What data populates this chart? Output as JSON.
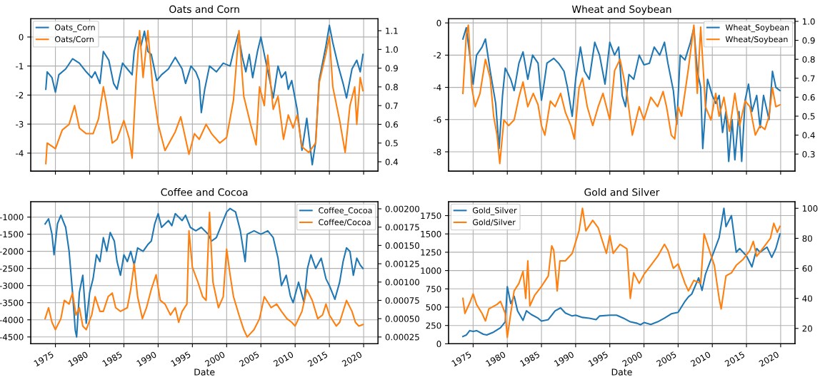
{
  "chart_data": [
    {
      "type": "line",
      "title": "Oats and Corn",
      "xlim": [
        1971.4,
        2022.1
      ],
      "xticks": [
        1975,
        1980,
        1985,
        1990,
        1995,
        2000,
        2005,
        2010,
        2015,
        2020
      ],
      "ylim": [
        -4.62,
        0.63
      ],
      "yticks": [
        -4,
        -3,
        -2,
        -1,
        0
      ],
      "y2lim": [
        0.35,
        1.164
      ],
      "y2ticks": [
        0.4,
        0.5,
        0.6,
        0.7,
        0.8,
        0.9,
        {
          "value": 1.0,
          "label": "1.0"
        },
        1.1
      ],
      "grid": true,
      "legend": "top left",
      "tick_labels": "y",
      "series": [
        {
          "name": "Oats_Corn",
          "color": "#1f77b4",
          "x": [
            1973.6,
            1973.8,
            1974.5,
            1975.0,
            1975.5,
            1976.5,
            1977.5,
            1978.5,
            1979.5,
            1980.3,
            1980.8,
            1981.5,
            1982.0,
            1982.8,
            1983.5,
            1984.0,
            1984.8,
            1985.5,
            1986.2,
            1986.5,
            1987.0,
            1987.5,
            1988.0,
            1988.5,
            1989.0,
            1989.8,
            1990.5,
            1991.5,
            1992.5,
            1993.5,
            1994.0,
            1994.8,
            1995.5,
            1996.0,
            1996.3,
            1996.8,
            1997.5,
            1998.5,
            1999.5,
            2000.5,
            2001.0,
            2001.7,
            2002.3,
            2002.8,
            2003.3,
            2003.8,
            2004.5,
            2005.0,
            2005.5,
            2006.3,
            2006.8,
            2007.5,
            2008.0,
            2008.6,
            2009.0,
            2009.5,
            2010.3,
            2011.0,
            2011.7,
            2012.5,
            2013.0,
            2013.5,
            2014.5,
            2015.0,
            2015.5,
            2016.3,
            2017.0,
            2017.5,
            2018.3,
            2019.0,
            2019.5,
            2019.9
          ],
          "values": [
            -1.8,
            -1.2,
            -1.4,
            -1.9,
            -1.3,
            -1.1,
            -0.75,
            -0.9,
            -1.2,
            -1.4,
            -1.2,
            -1.6,
            -0.5,
            -0.8,
            -1.6,
            -1.8,
            -0.9,
            -1.1,
            -1.3,
            -0.5,
            0.0,
            -0.3,
            0.2,
            -0.5,
            -0.6,
            -1.5,
            -1.3,
            -1.1,
            -0.7,
            -1.1,
            -1.6,
            -1.0,
            -1.2,
            -1.5,
            -2.6,
            -1.8,
            -1.0,
            -1.2,
            -0.9,
            -1.0,
            -0.5,
            0.1,
            -0.7,
            -1.2,
            -0.6,
            -1.4,
            -0.5,
            0.0,
            -0.6,
            -1.5,
            -2.1,
            -1.0,
            -1.4,
            -1.2,
            -1.8,
            -1.5,
            -2.5,
            -3.9,
            -2.8,
            -4.4,
            -3.6,
            -1.5,
            -0.3,
            0.4,
            -0.2,
            -1.0,
            -1.6,
            -2.1,
            -1.1,
            -0.8,
            -1.2,
            -0.6
          ]
        },
        {
          "name": "Oats/Corn",
          "color": "#ff7f0e",
          "axis": "y2",
          "x": [
            1973.6,
            1973.8,
            1975.0,
            1976.0,
            1977.0,
            1977.8,
            1978.5,
            1979.5,
            1980.5,
            1981.3,
            1982.0,
            1982.5,
            1983.3,
            1984.0,
            1985.0,
            1985.8,
            1986.2,
            1986.8,
            1987.3,
            1987.8,
            1988.5,
            1989.2,
            1990.0,
            1991.0,
            1992.5,
            1993.3,
            1994.5,
            1995.3,
            1996.0,
            1997.0,
            1997.8,
            1999.0,
            2000.0,
            2001.0,
            2001.8,
            2002.5,
            2003.5,
            2004.3,
            2004.8,
            2005.5,
            2006.0,
            2006.8,
            2007.5,
            2008.3,
            2009.0,
            2009.7,
            2010.3,
            2011.0,
            2012.0,
            2013.0,
            2013.5,
            2014.5,
            2015.0,
            2015.5,
            2016.5,
            2017.3,
            2018.0,
            2018.7,
            2019.0,
            2019.5,
            2019.9
          ],
          "values": [
            0.39,
            0.5,
            0.47,
            0.57,
            0.6,
            0.7,
            0.58,
            0.55,
            0.55,
            0.63,
            0.8,
            0.7,
            0.5,
            0.52,
            0.62,
            0.52,
            0.42,
            0.85,
            1.1,
            0.85,
            1.1,
            0.8,
            0.6,
            0.46,
            0.56,
            0.64,
            0.44,
            0.55,
            0.52,
            0.6,
            0.55,
            0.5,
            0.53,
            0.73,
            1.1,
            0.75,
            0.6,
            0.49,
            0.8,
            0.7,
            0.97,
            0.68,
            0.75,
            0.52,
            0.65,
            0.58,
            0.65,
            0.48,
            0.45,
            0.5,
            0.82,
            0.98,
            1.07,
            0.8,
            0.62,
            0.45,
            0.7,
            0.8,
            0.6,
            0.85,
            0.78
          ]
        }
      ]
    },
    {
      "type": "line",
      "title": "Wheat and Soybean",
      "xlim": [
        1971.4,
        2022.1
      ],
      "xticks": [
        1975,
        1980,
        1985,
        1990,
        1995,
        2000,
        2005,
        2010,
        2015,
        2020
      ],
      "ylim": [
        -9.2,
        0.26
      ],
      "yticks": [
        -8,
        -6,
        -4,
        -2,
        0
      ],
      "y2lim": [
        0.21,
        1.014
      ],
      "y2ticks": [
        0.3,
        0.4,
        0.5,
        0.6,
        0.7,
        0.8,
        0.9,
        {
          "value": 1.0,
          "label": "1.0"
        }
      ],
      "grid": true,
      "legend": "top right",
      "tick_labels": "y",
      "series": [
        {
          "name": "Wheat_Soybean",
          "color": "#1f77b4",
          "x": [
            1973.5,
            1974.0,
            1974.5,
            1975.0,
            1975.5,
            1976.3,
            1976.8,
            1977.5,
            1978.3,
            1978.8,
            1979.3,
            1979.7,
            1980.5,
            1981.0,
            1981.7,
            1982.3,
            1983.0,
            1983.7,
            1984.5,
            1985.0,
            1985.3,
            1985.8,
            1986.8,
            1987.5,
            1988.3,
            1988.8,
            1989.5,
            1990.0,
            1990.7,
            1991.3,
            1992.0,
            1992.8,
            1993.5,
            1994.3,
            1995.0,
            1995.7,
            1996.3,
            1996.8,
            1997.3,
            1997.8,
            1998.5,
            1999.3,
            2000.0,
            2000.8,
            2001.5,
            2002.3,
            2003.0,
            2003.5,
            2004.3,
            2004.8,
            2005.3,
            2006.0,
            2006.8,
            2007.3,
            2007.8,
            2008.3,
            2008.6,
            2009.3,
            2010.0,
            2010.5,
            2011.0,
            2011.5,
            2012.0,
            2012.4,
            2012.9,
            2013.3,
            2013.9,
            2014.3,
            2014.8,
            2015.3,
            2015.8,
            2016.5,
            2017.0,
            2017.5,
            2018.3,
            2018.8,
            2019.3,
            2019.9
          ],
          "values": [
            -1.0,
            -0.3,
            -2.0,
            -3.8,
            -2.0,
            -1.5,
            -1.0,
            -3.0,
            -5.0,
            -7.8,
            -4.5,
            -2.8,
            -3.5,
            -4.2,
            -2.5,
            -1.8,
            -3.5,
            -2.0,
            -2.5,
            -4.8,
            -4.0,
            -2.5,
            -2.2,
            -2.5,
            -3.0,
            -4.0,
            -5.8,
            -3.5,
            -1.5,
            -3.0,
            -3.5,
            -1.2,
            -2.0,
            -3.8,
            -1.2,
            -2.0,
            -1.5,
            -4.5,
            -5.2,
            -3.2,
            -3.5,
            -2.0,
            -2.6,
            -2.5,
            -1.5,
            -2.0,
            -1.2,
            -2.5,
            -4.2,
            -6.3,
            -2.0,
            -2.3,
            -1.2,
            -0.3,
            -3.0,
            -4.0,
            -7.8,
            -3.5,
            -4.5,
            -5.0,
            -4.5,
            -6.8,
            -5.5,
            -8.6,
            -6.0,
            -8.5,
            -5.5,
            -8.6,
            -4.8,
            -3.8,
            -5.5,
            -4.5,
            -6.5,
            -4.5,
            -6.0,
            -3.0,
            -4.0,
            -4.2
          ]
        },
        {
          "name": "Wheat/Soybean",
          "color": "#ff7f0e",
          "axis": "y2",
          "x": [
            1973.5,
            1974.0,
            1974.3,
            1974.8,
            1975.3,
            1976.0,
            1976.8,
            1977.5,
            1978.0,
            1978.5,
            1978.9,
            1979.5,
            1980.2,
            1981.0,
            1981.7,
            1982.3,
            1983.0,
            1983.8,
            1984.5,
            1985.0,
            1985.5,
            1986.3,
            1987.0,
            1987.8,
            1988.5,
            1989.3,
            1989.8,
            1990.5,
            1991.0,
            1991.7,
            1992.5,
            1993.3,
            1994.0,
            1995.0,
            1995.7,
            1996.5,
            1997.5,
            1998.3,
            1999.3,
            2000.0,
            2001.0,
            2002.0,
            2002.8,
            2003.3,
            2004.0,
            2004.5,
            2005.0,
            2005.5,
            2006.5,
            2007.3,
            2007.8,
            2008.3,
            2009.0,
            2009.8,
            2010.5,
            2011.0,
            2011.7,
            2012.5,
            2013.3,
            2014.0,
            2014.8,
            2015.5,
            2016.3,
            2017.0,
            2017.7,
            2018.3,
            2018.8,
            2019.3,
            2019.9
          ],
          "values": [
            0.62,
            0.93,
            0.98,
            0.65,
            0.55,
            0.62,
            0.8,
            0.7,
            0.5,
            0.4,
            0.25,
            0.48,
            0.45,
            0.48,
            0.6,
            0.68,
            0.55,
            0.62,
            0.56,
            0.45,
            0.4,
            0.58,
            0.55,
            0.62,
            0.52,
            0.45,
            0.38,
            0.65,
            0.7,
            0.55,
            0.45,
            0.55,
            0.62,
            0.48,
            0.74,
            0.8,
            0.62,
            0.4,
            0.55,
            0.48,
            0.6,
            0.55,
            0.63,
            0.55,
            0.4,
            0.38,
            0.55,
            0.5,
            0.75,
            0.98,
            0.62,
            0.97,
            0.55,
            0.48,
            0.62,
            0.5,
            0.6,
            0.42,
            0.62,
            0.45,
            0.58,
            0.55,
            0.4,
            0.45,
            0.43,
            0.5,
            0.65,
            0.55,
            0.56
          ]
        }
      ]
    },
    {
      "type": "line",
      "title": "Coffee and Cocoa",
      "xlabel": "Date",
      "xlim": [
        1971.4,
        2022.1
      ],
      "xticks": [
        1975,
        1980,
        1985,
        1990,
        1995,
        2000,
        2005,
        2010,
        2015,
        2020
      ],
      "ylim": [
        -4700,
        -551
      ],
      "yticks": [
        -4500,
        -4000,
        -3500,
        -3000,
        -2500,
        -2000,
        -1500,
        -1000
      ],
      "y2lim": [
        0.000157,
        0.002097
      ],
      "y2ticks": [
        {
          "value": 0.00025,
          "label": "0.00025"
        },
        {
          "value": 0.0005,
          "label": "0.00050"
        },
        {
          "value": 0.00075,
          "label": "0.00075"
        },
        {
          "value": 0.001,
          "label": "0.00100"
        },
        {
          "value": 0.00125,
          "label": "0.00125"
        },
        {
          "value": 0.0015,
          "label": "0.00150"
        },
        {
          "value": 0.00175,
          "label": "0.00175"
        },
        {
          "value": 0.002,
          "label": "0.00200"
        }
      ],
      "grid": true,
      "legend": "top right",
      "series": [
        {
          "name": "Coffee_Cocoa",
          "color": "#1f77b4",
          "x": [
            1973.5,
            1974.0,
            1974.5,
            1974.8,
            1975.3,
            1975.8,
            1976.5,
            1977.0,
            1977.5,
            1977.9,
            1978.1,
            1978.5,
            1979.0,
            1979.5,
            1980.0,
            1980.5,
            1981.0,
            1981.5,
            1982.0,
            1982.5,
            1983.0,
            1983.6,
            1984.0,
            1984.5,
            1985.0,
            1985.5,
            1986.0,
            1986.5,
            1987.0,
            1987.8,
            1988.5,
            1989.0,
            1989.5,
            1990.0,
            1990.5,
            1991.5,
            1992.0,
            1992.5,
            1993.5,
            1994.0,
            1994.7,
            1995.5,
            1996.3,
            1997.3,
            1997.8,
            1998.5,
            1999.3,
            2000.0,
            2000.5,
            2001.3,
            2002.0,
            2002.7,
            2003.0,
            2004.0,
            2005.0,
            2006.0,
            2006.8,
            2007.5,
            2008.0,
            2008.7,
            2009.3,
            2009.7,
            2010.5,
            2011.3,
            2011.8,
            2012.3,
            2013.0,
            2013.8,
            2014.5,
            2015.0,
            2015.8,
            2016.5,
            2017.0,
            2017.5,
            2018.0,
            2018.5,
            2019.0,
            2019.5,
            2019.9
          ],
          "values": [
            -1200,
            -1050,
            -1500,
            -2100,
            -1200,
            -950,
            -1300,
            -2000,
            -3200,
            -4300,
            -4500,
            -3200,
            -2700,
            -4100,
            -3200,
            -2800,
            -2100,
            -2300,
            -1600,
            -2000,
            -1450,
            -1700,
            -2300,
            -2700,
            -2100,
            -2300,
            -2000,
            -2400,
            -1900,
            -2000,
            -1800,
            -1700,
            -1200,
            -900,
            -1300,
            -1100,
            -1250,
            -900,
            -1100,
            -950,
            -1300,
            -1400,
            -1300,
            -1500,
            -1700,
            -1600,
            -1200,
            -850,
            -750,
            -850,
            -1400,
            -2300,
            -1500,
            -1400,
            -1500,
            -1400,
            -1600,
            -2200,
            -3000,
            -2700,
            -3300,
            -3500,
            -2900,
            -3500,
            -2500,
            -2100,
            -2500,
            -2200,
            -2800,
            -3000,
            -3400,
            -2900,
            -2300,
            -1900,
            -2000,
            -2700,
            -2200,
            -2400,
            -2500
          ]
        },
        {
          "name": "Coffee/Cocoa",
          "color": "#ff7f0e",
          "axis": "y2",
          "x": [
            1973.5,
            1974.0,
            1974.5,
            1975.0,
            1975.8,
            1976.3,
            1977.0,
            1977.5,
            1978.0,
            1978.5,
            1979.0,
            1979.5,
            1980.3,
            1980.8,
            1981.5,
            1982.0,
            1982.7,
            1983.3,
            1983.8,
            1984.5,
            1985.5,
            1986.0,
            1986.5,
            1987.0,
            1987.7,
            1988.3,
            1989.0,
            1989.7,
            1990.3,
            1991.0,
            1991.8,
            1992.5,
            1993.0,
            1993.5,
            1994.2,
            1994.5,
            1995.0,
            1995.8,
            1996.5,
            1997.0,
            1997.5,
            1998.0,
            1998.8,
            1999.5,
            2000.0,
            2000.5,
            2001.0,
            2001.8,
            2002.5,
            2003.0,
            2004.0,
            2004.8,
            2005.5,
            2006.5,
            2007.3,
            2008.0,
            2008.8,
            2009.5,
            2010.0,
            2011.0,
            2011.7,
            2012.5,
            2013.3,
            2014.0,
            2014.5,
            2015.0,
            2016.0,
            2016.5,
            2017.5,
            2018.3,
            2018.8,
            2019.3,
            2019.9
          ],
          "values": [
            0.0005,
            0.00065,
            0.00045,
            0.00035,
            0.0005,
            0.00075,
            0.0007,
            0.00085,
            0.00055,
            0.00065,
            0.0004,
            0.00035,
            0.00055,
            0.0008,
            0.0006,
            0.0006,
            0.0008,
            0.00085,
            0.00065,
            0.0006,
            0.00065,
            0.0009,
            0.00125,
            0.0008,
            0.0005,
            0.00065,
            0.0009,
            0.0011,
            0.00075,
            0.0007,
            0.00055,
            0.00065,
            0.00045,
            0.0006,
            0.0007,
            0.0017,
            0.0012,
            0.001,
            0.0008,
            0.00075,
            0.00195,
            0.001,
            0.00065,
            0.0008,
            0.00145,
            0.0011,
            0.0008,
            0.00055,
            0.00035,
            0.00025,
            0.00035,
            0.0005,
            0.0008,
            0.00065,
            0.0007,
            0.0006,
            0.0005,
            0.00045,
            0.0004,
            0.0006,
            0.0009,
            0.00075,
            0.0005,
            0.00055,
            0.0007,
            0.00055,
            0.0004,
            0.00045,
            0.00075,
            0.0006,
            0.00045,
            0.0004,
            0.00042
          ]
        }
      ]
    },
    {
      "type": "line",
      "title": "Gold and Silver",
      "xlabel": "Date",
      "xlim": [
        1971.4,
        2022.1
      ],
      "xticks": [
        1975,
        1980,
        1985,
        1990,
        1995,
        2000,
        2005,
        2010,
        2015,
        2020
      ],
      "ylim": [
        0,
        1940
      ],
      "yticks": [
        0,
        250,
        500,
        750,
        1000,
        1250,
        1500,
        1750
      ],
      "y2lim": [
        9.76,
        104.4
      ],
      "y2ticks": [
        20,
        40,
        60,
        80,
        100
      ],
      "grid": true,
      "legend": "top left",
      "series": [
        {
          "name": "Gold_Silver",
          "color": "#1f77b4",
          "x": [
            1973.5,
            1974.0,
            1974.5,
            1975.0,
            1975.5,
            1976.5,
            1977.0,
            1978.0,
            1979.0,
            1979.7,
            1980.0,
            1980.5,
            1981.0,
            1981.5,
            1982.3,
            1982.8,
            1983.5,
            1984.5,
            1985.0,
            1986.0,
            1987.0,
            1987.8,
            1988.5,
            1989.5,
            1990.0,
            1991.0,
            1992.0,
            1993.0,
            1993.5,
            1995.0,
            1996.0,
            1997.0,
            1998.0,
            1999.0,
            1999.5,
            2000.0,
            2001.0,
            2002.0,
            2003.0,
            2004.0,
            2005.0,
            2006.0,
            2006.5,
            2007.0,
            2008.0,
            2008.5,
            2009.0,
            2010.0,
            2011.0,
            2011.7,
            2012.0,
            2012.8,
            2013.5,
            2014.0,
            2015.0,
            2015.8,
            2016.5,
            2017.0,
            2018.0,
            2018.7,
            2019.3,
            2019.9
          ],
          "values": [
            100,
            120,
            180,
            170,
            180,
            130,
            120,
            160,
            220,
            300,
            780,
            550,
            650,
            450,
            320,
            450,
            400,
            350,
            310,
            330,
            450,
            490,
            420,
            380,
            390,
            360,
            350,
            330,
            380,
            390,
            390,
            350,
            300,
            280,
            260,
            290,
            265,
            300,
            350,
            410,
            430,
            580,
            640,
            680,
            900,
            730,
            950,
            1200,
            1450,
            1850,
            1600,
            1750,
            1250,
            1300,
            1200,
            1050,
            1300,
            1250,
            1320,
            1180,
            1300,
            1500
          ]
        },
        {
          "name": "Gold/Silver",
          "color": "#ff7f0e",
          "axis": "y2",
          "x": [
            1973.5,
            1973.8,
            1974.5,
            1975.0,
            1975.5,
            1976.3,
            1976.8,
            1977.3,
            1978.5,
            1979.0,
            1979.7,
            1980.0,
            1980.5,
            1981.0,
            1981.7,
            1982.3,
            1982.7,
            1983.0,
            1983.3,
            1984.0,
            1985.0,
            1986.0,
            1986.5,
            1986.8,
            1987.3,
            1987.7,
            1988.5,
            1989.5,
            1990.5,
            1991.0,
            1991.5,
            1992.5,
            1993.3,
            1994.5,
            1995.0,
            1995.5,
            1996.5,
            1997.5,
            1998.0,
            1998.5,
            1999.3,
            2000.0,
            2001.0,
            2002.0,
            2003.0,
            2003.5,
            2004.3,
            2005.0,
            2006.0,
            2006.5,
            2007.3,
            2008.3,
            2008.8,
            2009.5,
            2010.3,
            2011.0,
            2011.3,
            2012.0,
            2012.8,
            2013.5,
            2014.5,
            2015.5,
            2016.0,
            2016.5,
            2017.5,
            2018.5,
            2019.0,
            2019.5,
            2019.9
          ],
          "values": [
            40,
            30,
            37,
            43,
            36,
            30,
            25,
            33,
            36,
            38,
            30,
            14,
            30,
            45,
            50,
            58,
            40,
            65,
            35,
            42,
            48,
            55,
            75,
            72,
            45,
            65,
            65,
            70,
            85,
            100,
            85,
            92,
            87,
            70,
            82,
            70,
            76,
            73,
            40,
            57,
            50,
            56,
            62,
            68,
            76,
            72,
            60,
            63,
            50,
            45,
            52,
            50,
            83,
            73,
            62,
            40,
            33,
            55,
            57,
            62,
            66,
            72,
            78,
            68,
            74,
            80,
            90,
            84,
            88
          ]
        }
      ]
    }
  ]
}
